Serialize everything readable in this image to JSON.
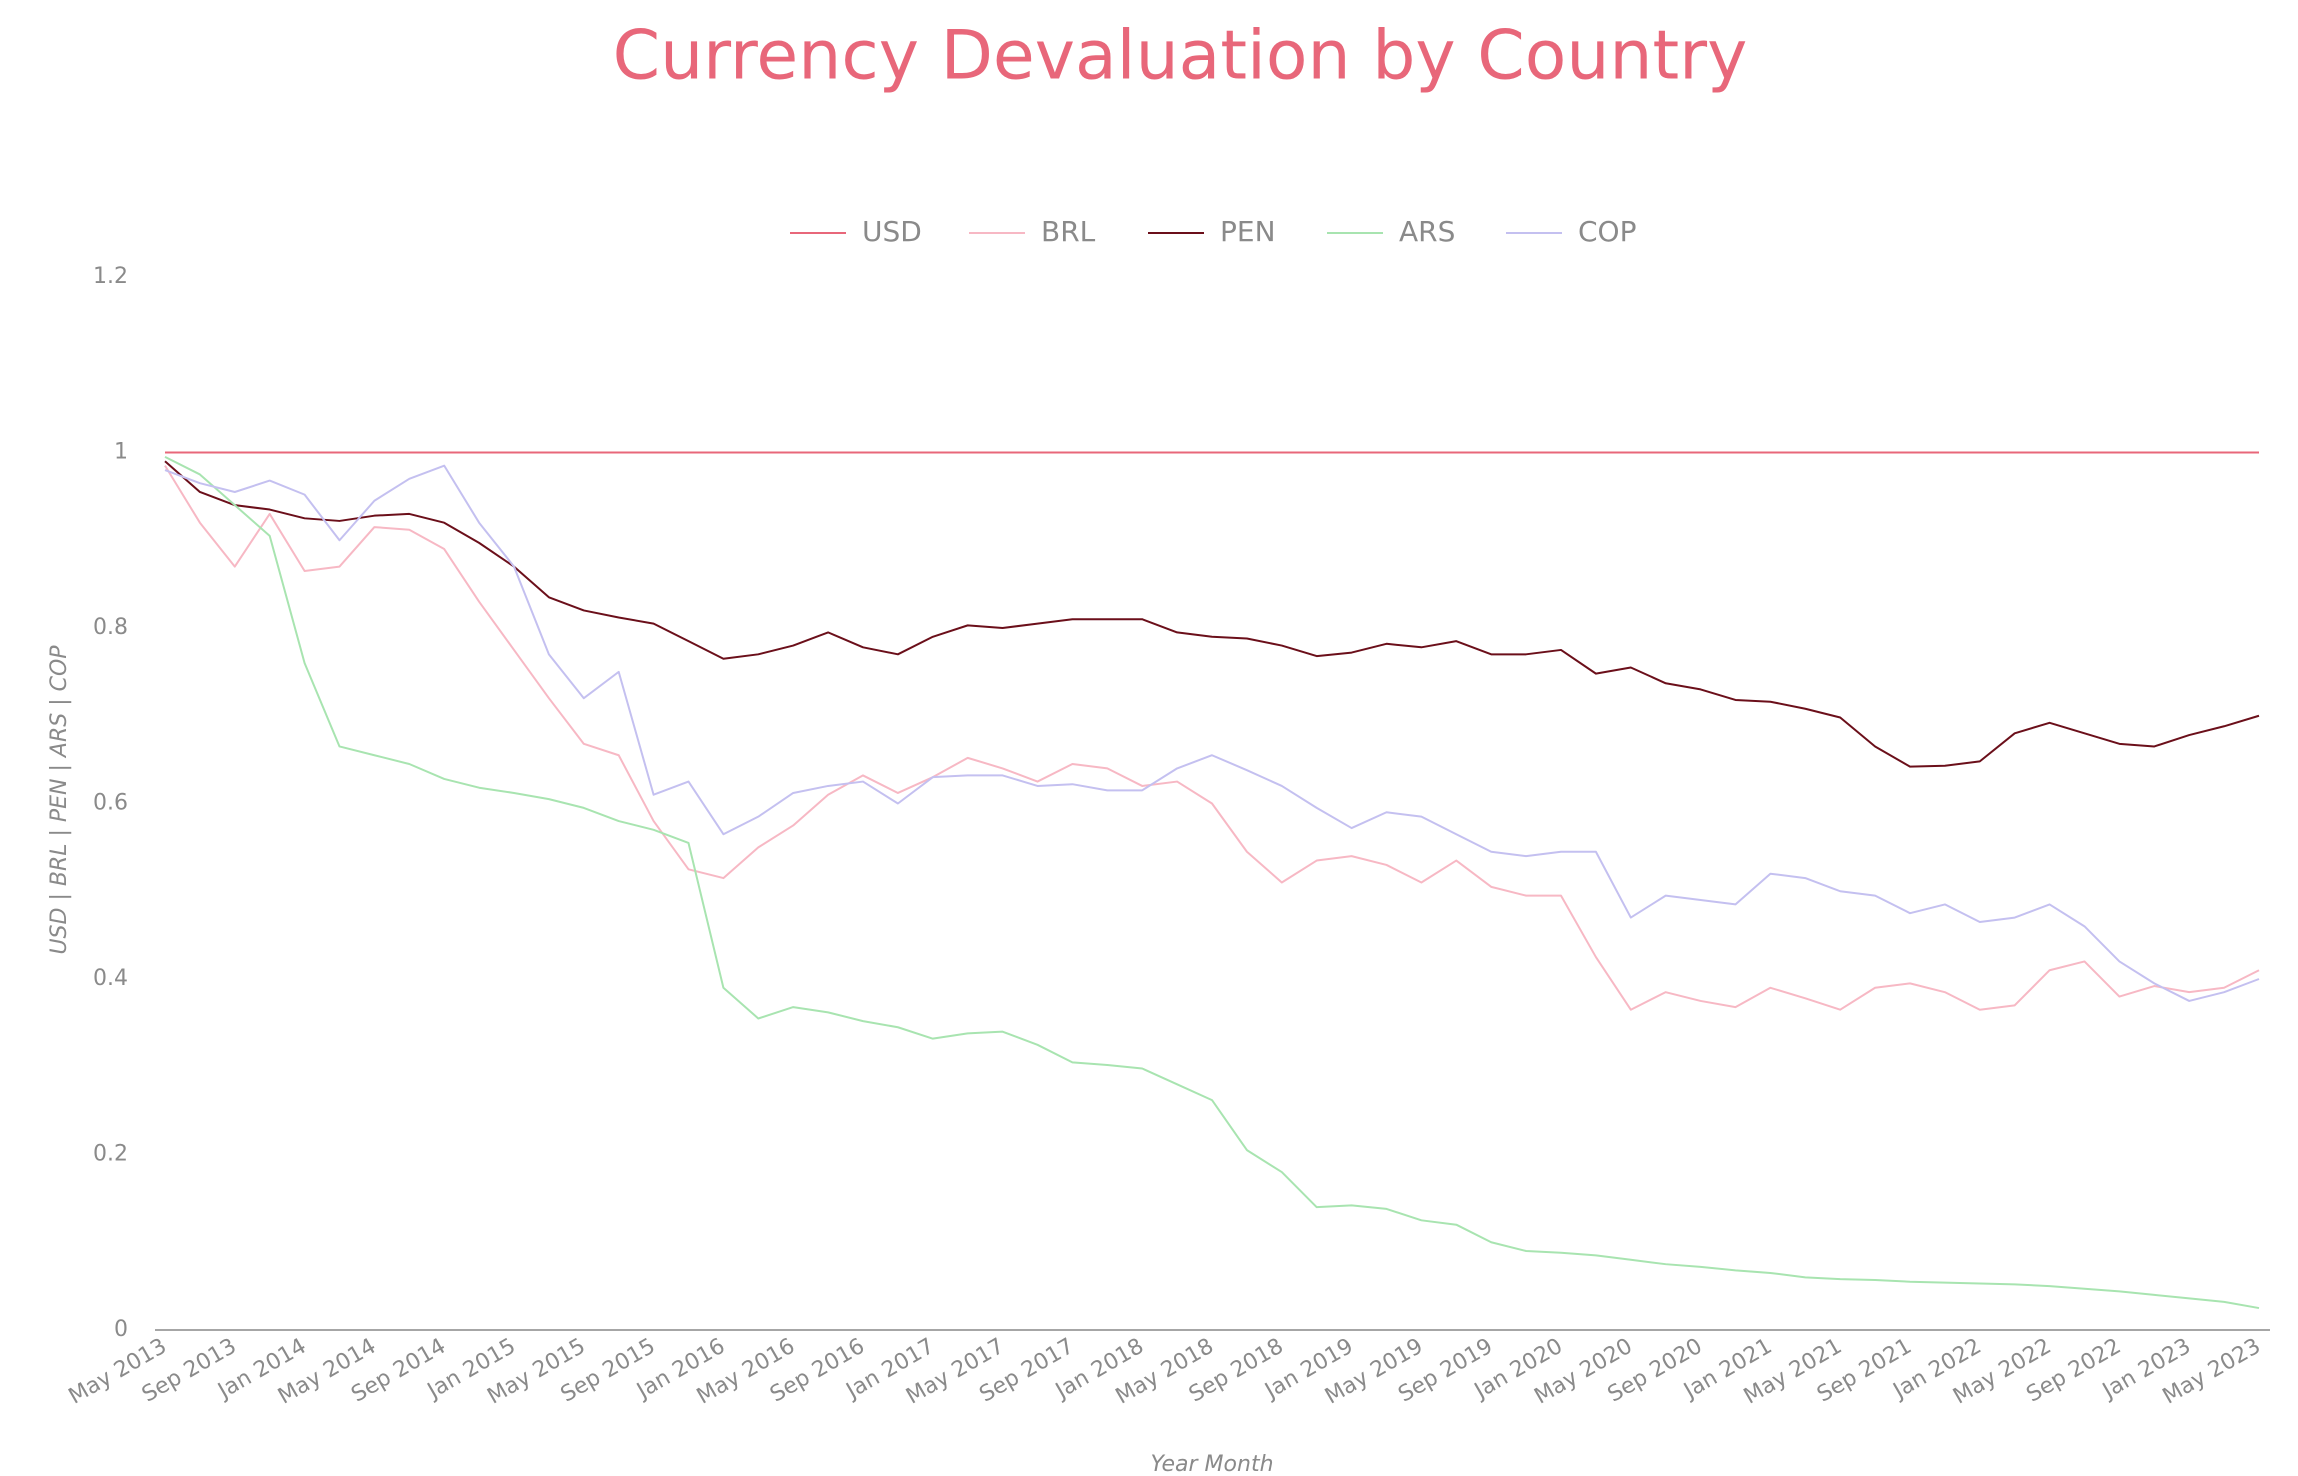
{
  "chart_data": {
    "type": "line",
    "title": "Currency Devaluation  by Country",
    "x_label": "Year Month",
    "y_label": "USD | BRL | PEN | ARS | COP",
    "categories": [
      "May 2013",
      null,
      "Sep 2013",
      null,
      "Jan 2014",
      null,
      "May 2014",
      null,
      "Sep 2014",
      null,
      "Jan 2015",
      null,
      "May 2015",
      null,
      "Sep 2015",
      null,
      "Jan 2016",
      null,
      "May 2016",
      null,
      "Sep 2016",
      null,
      "Jan 2017",
      null,
      "May 2017",
      null,
      "Sep 2017",
      null,
      "Jan 2018",
      null,
      "May 2018",
      null,
      "Sep 2018",
      null,
      "Jan 2019",
      null,
      "May 2019",
      null,
      "Sep 2019",
      null,
      "Jan 2020",
      null,
      "May 2020",
      null,
      "Sep 2020",
      null,
      "Jan 2021",
      null,
      "May 2021",
      null,
      "Sep 2021",
      null,
      "Jan 2022",
      null,
      "May 2022",
      null,
      "Sep 2022",
      null,
      "Jan 2023",
      null,
      "May 2023"
    ],
    "ylim": [
      0,
      1.2
    ],
    "yticks": [
      0,
      0.2,
      0.4,
      0.6,
      0.8,
      1,
      1.2
    ],
    "grid": false,
    "legend": "top",
    "series": [
      {
        "name": "USD",
        "color": "#e8677a",
        "values": [
          1,
          1,
          1,
          1,
          1,
          1,
          1,
          1,
          1,
          1,
          1,
          1,
          1,
          1,
          1,
          1,
          1,
          1,
          1,
          1,
          1,
          1,
          1,
          1,
          1,
          1,
          1,
          1,
          1,
          1,
          1,
          1,
          1,
          1,
          1,
          1,
          1,
          1,
          1,
          1,
          1,
          1,
          1,
          1,
          1,
          1,
          1,
          1,
          1,
          1,
          1,
          1,
          1,
          1,
          1,
          1,
          1,
          1,
          1,
          1,
          1
        ]
      },
      {
        "name": "BRL",
        "color": "#f7b8c4",
        "values": [
          0.985,
          0.92,
          0.87,
          0.93,
          0.865,
          0.87,
          0.915,
          0.912,
          0.89,
          0.83,
          0.775,
          0.72,
          0.668,
          0.655,
          0.58,
          0.525,
          0.515,
          0.55,
          0.575,
          0.61,
          0.632,
          0.612,
          0.63,
          0.652,
          0.64,
          0.625,
          0.645,
          0.64,
          0.62,
          0.625,
          0.6,
          0.545,
          0.51,
          0.535,
          0.54,
          0.53,
          0.51,
          0.535,
          0.505,
          0.495,
          0.495,
          0.425,
          0.365,
          0.385,
          0.375,
          0.368,
          0.39,
          0.378,
          0.365,
          0.39,
          0.395,
          0.385,
          0.365,
          0.37,
          0.41,
          0.42,
          0.38,
          0.392,
          0.385,
          0.39,
          0.41
        ]
      },
      {
        "name": "PEN",
        "color": "#6b0f1a",
        "values": [
          0.99,
          0.955,
          0.94,
          0.935,
          0.925,
          0.922,
          0.928,
          0.93,
          0.92,
          0.897,
          0.87,
          0.835,
          0.82,
          0.812,
          0.805,
          0.785,
          0.765,
          0.77,
          0.78,
          0.795,
          0.778,
          0.77,
          0.79,
          0.803,
          0.8,
          0.805,
          0.81,
          0.81,
          0.81,
          0.795,
          0.79,
          0.788,
          0.78,
          0.768,
          0.772,
          0.782,
          0.778,
          0.785,
          0.77,
          0.77,
          0.775,
          0.748,
          0.755,
          0.737,
          0.73,
          0.718,
          0.716,
          0.708,
          0.698,
          0.665,
          0.642,
          0.643,
          0.648,
          0.68,
          0.692,
          0.68,
          0.668,
          0.665,
          0.678,
          0.688,
          0.7
        ]
      },
      {
        "name": "ARS",
        "color": "#a8e4b0",
        "values": [
          0.995,
          0.975,
          0.94,
          0.905,
          0.76,
          0.665,
          0.655,
          0.645,
          0.628,
          0.618,
          0.612,
          0.605,
          0.595,
          0.58,
          0.57,
          0.555,
          0.39,
          0.355,
          0.368,
          0.362,
          0.352,
          0.345,
          0.332,
          0.338,
          0.34,
          0.325,
          0.305,
          0.302,
          0.298,
          0.28,
          0.262,
          0.205,
          0.18,
          0.14,
          0.142,
          0.138,
          0.125,
          0.12,
          0.1,
          0.09,
          0.088,
          0.085,
          0.08,
          0.075,
          0.072,
          0.068,
          0.065,
          0.06,
          0.058,
          0.057,
          0.055,
          0.054,
          0.053,
          0.052,
          0.05,
          0.047,
          0.044,
          0.04,
          0.036,
          0.032,
          0.025
        ]
      },
      {
        "name": "COP",
        "color": "#c4c0f0",
        "values": [
          0.98,
          0.965,
          0.955,
          0.968,
          0.952,
          0.9,
          0.945,
          0.97,
          0.985,
          0.92,
          0.87,
          0.77,
          0.72,
          0.75,
          0.61,
          0.625,
          0.565,
          0.585,
          0.612,
          0.62,
          0.625,
          0.6,
          0.63,
          0.632,
          0.632,
          0.62,
          0.622,
          0.615,
          0.615,
          0.64,
          0.655,
          0.638,
          0.62,
          0.595,
          0.572,
          0.59,
          0.585,
          0.565,
          0.545,
          0.54,
          0.545,
          0.545,
          0.47,
          0.495,
          0.49,
          0.485,
          0.52,
          0.515,
          0.5,
          0.495,
          0.475,
          0.485,
          0.465,
          0.47,
          0.485,
          0.46,
          0.42,
          0.395,
          0.375,
          0.385,
          0.4
        ]
      }
    ]
  }
}
